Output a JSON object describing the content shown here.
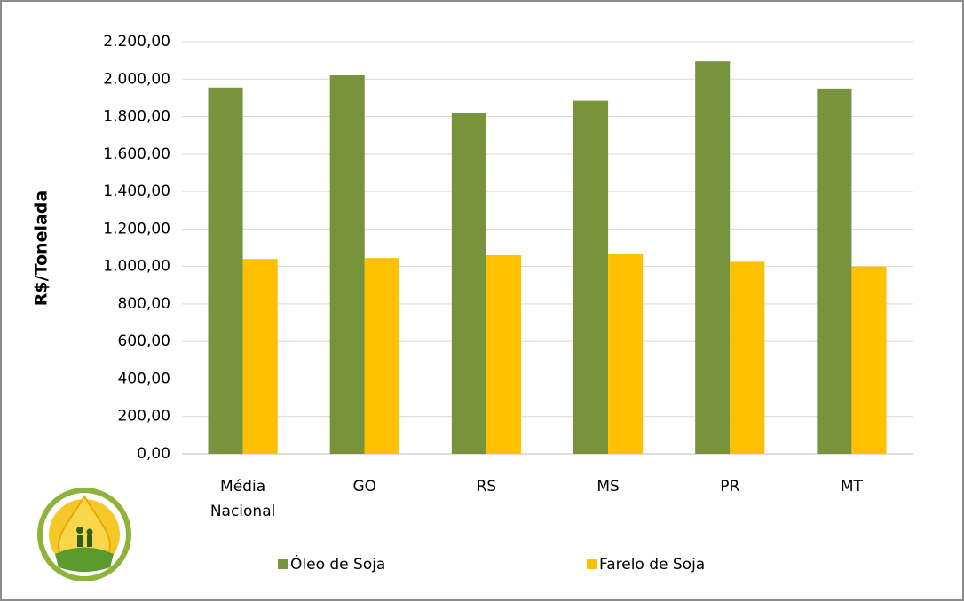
{
  "chart_data": {
    "type": "bar",
    "y_label": "R$/Tonelada",
    "categories": [
      "Média Nacional",
      "GO",
      "RS",
      "MS",
      "PR",
      "MT"
    ],
    "series": [
      {
        "name": "Óleo de Soja",
        "color": "#77933c",
        "values": [
          1955,
          2020,
          1820,
          1885,
          2095,
          1950
        ]
      },
      {
        "name": "Farelo de Soja",
        "color": "#ffc000",
        "values": [
          1040,
          1045,
          1060,
          1065,
          1025,
          1000
        ]
      }
    ],
    "ylim": [
      0,
      2200
    ],
    "yticks": [
      {
        "value": 0,
        "label": "0,00"
      },
      {
        "value": 200,
        "label": "200,00"
      },
      {
        "value": 400,
        "label": "400,00"
      },
      {
        "value": 600,
        "label": "600,00"
      },
      {
        "value": 800,
        "label": "800,00"
      },
      {
        "value": 1000,
        "label": "1.000,00"
      },
      {
        "value": 1200,
        "label": "1.200,00"
      },
      {
        "value": 1400,
        "label": "1.400,00"
      },
      {
        "value": 1600,
        "label": "1.600,00"
      },
      {
        "value": 1800,
        "label": "1.800,00"
      },
      {
        "value": 2000,
        "label": "2.000,00"
      },
      {
        "value": 2200,
        "label": "2.200,00"
      }
    ],
    "grid": true
  }
}
